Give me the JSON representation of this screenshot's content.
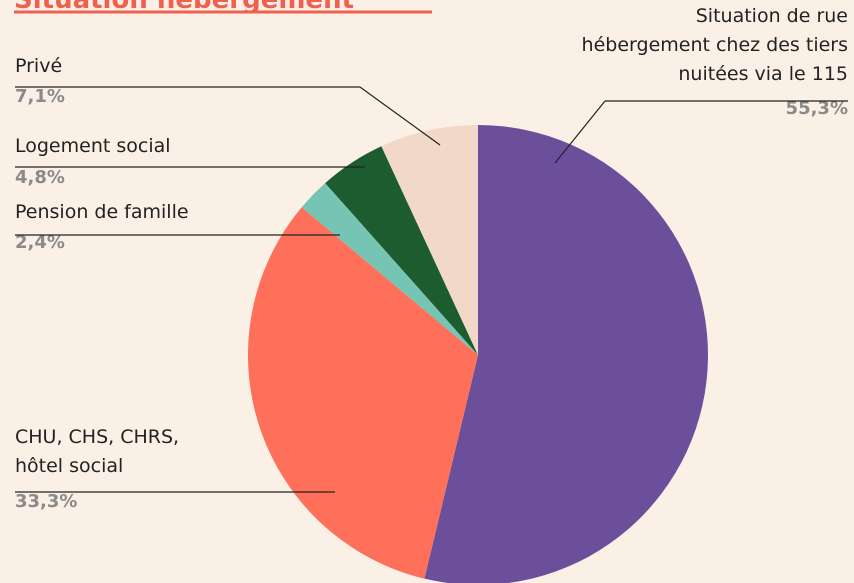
{
  "chart_data": {
    "type": "pie",
    "title": "Situation hébergement",
    "categories": [
      [
        "Situation de rue",
        "hébergement chez des tiers",
        "nuitées via le 115"
      ],
      [
        "CHU, CHS, CHRS,",
        "hôtel social"
      ],
      [
        "Pension de famille"
      ],
      [
        "Logement social"
      ],
      [
        "Privé"
      ]
    ],
    "values": [
      55.3,
      33.3,
      2.4,
      4.8,
      7.1
    ],
    "value_labels": [
      "55,3%",
      "33,3%",
      "2,4%",
      "4,8%",
      "7,1%"
    ],
    "colors": [
      "#6b4f9b",
      "#ff705a",
      "#76c4b4",
      "#1d5c2e",
      "#f2d8c7"
    ]
  }
}
